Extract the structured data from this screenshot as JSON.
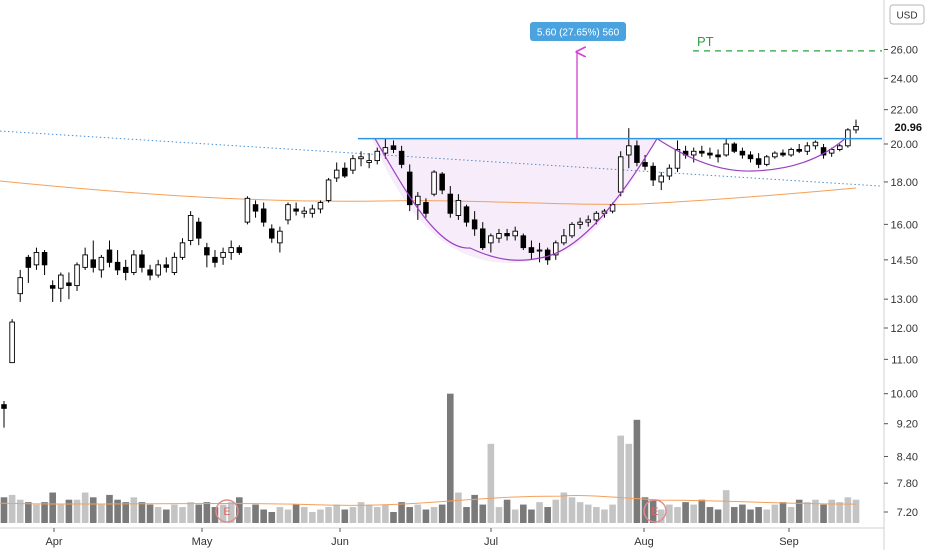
{
  "chart_data": {
    "type": "candlestick",
    "currency_label": "USD",
    "last_price_label": "20.96",
    "y_scale": "log",
    "y_ticks": [
      "7.20",
      "7.80",
      "8.40",
      "9.20",
      "10.00",
      "11.00",
      "12.00",
      "13.00",
      "14.50",
      "16.00",
      "18.00",
      "20.00",
      "22.00",
      "24.00",
      "26.00"
    ],
    "x_ticks": [
      "Apr",
      "May",
      "Jun",
      "Jul",
      "Aug",
      "Sep"
    ],
    "measure_label": "5.60 (27.65%) 560",
    "target_label": "PT",
    "earnings_marker": "E",
    "resistance_level": 20.3,
    "target_level": 25.9,
    "candles": [
      [
        9.7,
        9.8,
        9.1,
        9.6
      ],
      [
        10.9,
        12.3,
        10.9,
        12.2
      ],
      [
        13.2,
        14.1,
        12.9,
        13.8
      ],
      [
        14.6,
        14.7,
        13.6,
        14.2
      ],
      [
        14.3,
        15.0,
        14.1,
        14.8
      ],
      [
        14.8,
        14.9,
        13.9,
        14.3
      ],
      [
        13.5,
        13.7,
        12.9,
        13.4
      ],
      [
        13.4,
        14.0,
        12.9,
        13.9
      ],
      [
        13.6,
        14.0,
        13.0,
        13.5
      ],
      [
        13.5,
        14.4,
        13.3,
        14.3
      ],
      [
        14.2,
        15.0,
        14.1,
        14.7
      ],
      [
        14.5,
        15.3,
        14.0,
        14.2
      ],
      [
        14.1,
        14.7,
        13.8,
        14.6
      ],
      [
        14.9,
        15.3,
        14.2,
        14.4
      ],
      [
        14.4,
        14.9,
        13.9,
        14.1
      ],
      [
        14.2,
        14.5,
        13.7,
        14.0
      ],
      [
        14.0,
        14.9,
        13.9,
        14.7
      ],
      [
        14.7,
        14.9,
        14.0,
        14.2
      ],
      [
        14.1,
        14.3,
        13.7,
        13.9
      ],
      [
        13.9,
        14.5,
        13.8,
        14.3
      ],
      [
        14.3,
        14.6,
        14.0,
        14.2
      ],
      [
        14.0,
        14.8,
        13.9,
        14.6
      ],
      [
        14.6,
        15.4,
        14.5,
        15.2
      ],
      [
        15.3,
        16.6,
        15.1,
        16.4
      ],
      [
        16.1,
        16.3,
        15.1,
        15.4
      ],
      [
        15.0,
        15.2,
        14.2,
        14.7
      ],
      [
        14.6,
        14.9,
        14.2,
        14.4
      ],
      [
        14.6,
        15.0,
        14.3,
        14.8
      ],
      [
        14.8,
        15.3,
        14.5,
        15.0
      ],
      [
        15.0,
        15.1,
        14.7,
        14.8
      ],
      [
        16.1,
        17.3,
        16.0,
        17.2
      ],
      [
        16.9,
        17.1,
        16.3,
        16.6
      ],
      [
        16.7,
        17.0,
        15.9,
        16.1
      ],
      [
        15.8,
        16.0,
        15.2,
        15.4
      ],
      [
        15.2,
        15.9,
        14.8,
        15.7
      ],
      [
        16.2,
        17.0,
        16.0,
        16.9
      ],
      [
        16.7,
        17.0,
        16.4,
        16.6
      ],
      [
        16.5,
        16.8,
        16.3,
        16.6
      ],
      [
        16.5,
        16.9,
        16.3,
        16.7
      ],
      [
        16.7,
        17.1,
        16.5,
        17.0
      ],
      [
        17.1,
        18.2,
        17.0,
        18.1
      ],
      [
        18.2,
        19.0,
        18.0,
        18.6
      ],
      [
        18.7,
        19.0,
        18.2,
        18.3
      ],
      [
        18.6,
        19.4,
        18.4,
        19.2
      ],
      [
        19.2,
        19.6,
        18.8,
        19.3
      ],
      [
        19.0,
        19.5,
        18.7,
        19.1
      ],
      [
        19.1,
        19.8,
        18.9,
        19.6
      ],
      [
        19.5,
        20.3,
        19.2,
        19.8
      ],
      [
        19.9,
        20.2,
        19.5,
        19.7
      ],
      [
        19.6,
        19.9,
        18.7,
        18.9
      ],
      [
        18.5,
        18.9,
        16.6,
        16.9
      ],
      [
        16.9,
        17.5,
        16.2,
        17.3
      ],
      [
        17.0,
        17.2,
        16.3,
        16.5
      ],
      [
        17.4,
        18.6,
        17.3,
        18.5
      ],
      [
        18.4,
        18.5,
        17.4,
        17.6
      ],
      [
        17.4,
        17.8,
        16.3,
        16.5
      ],
      [
        16.4,
        17.4,
        16.2,
        17.1
      ],
      [
        16.8,
        16.9,
        15.9,
        16.1
      ],
      [
        16.2,
        16.6,
        15.5,
        15.8
      ],
      [
        15.8,
        16.1,
        14.9,
        15.0
      ],
      [
        15.2,
        15.6,
        14.8,
        15.5
      ],
      [
        15.4,
        15.8,
        15.2,
        15.6
      ],
      [
        15.6,
        15.8,
        15.3,
        15.5
      ],
      [
        15.5,
        15.9,
        15.3,
        15.7
      ],
      [
        15.5,
        15.6,
        14.9,
        15.0
      ],
      [
        15.0,
        15.3,
        14.5,
        14.8
      ],
      [
        14.9,
        15.2,
        14.4,
        14.9
      ],
      [
        14.9,
        15.0,
        14.3,
        14.5
      ],
      [
        14.7,
        15.3,
        14.5,
        15.2
      ],
      [
        15.2,
        15.8,
        15.1,
        15.5
      ],
      [
        15.5,
        16.1,
        15.4,
        16.0
      ],
      [
        16.0,
        16.3,
        15.8,
        16.1
      ],
      [
        16.1,
        16.4,
        15.9,
        16.2
      ],
      [
        16.2,
        16.6,
        16.0,
        16.5
      ],
      [
        16.5,
        16.7,
        16.3,
        16.6
      ],
      [
        16.6,
        17.0,
        16.5,
        16.9
      ],
      [
        17.5,
        19.6,
        17.3,
        19.3
      ],
      [
        19.4,
        20.9,
        18.7,
        19.9
      ],
      [
        19.9,
        20.2,
        18.8,
        19.0
      ],
      [
        19.0,
        19.4,
        18.6,
        18.8
      ],
      [
        18.8,
        19.0,
        17.8,
        18.1
      ],
      [
        18.0,
        18.5,
        17.6,
        18.3
      ],
      [
        18.3,
        18.9,
        18.1,
        18.7
      ],
      [
        18.7,
        20.2,
        18.5,
        19.7
      ],
      [
        19.6,
        19.9,
        19.2,
        19.4
      ],
      [
        19.4,
        19.8,
        19.0,
        19.6
      ],
      [
        19.6,
        19.9,
        19.3,
        19.5
      ],
      [
        19.5,
        19.8,
        19.2,
        19.4
      ],
      [
        19.4,
        19.7,
        19.0,
        19.3
      ],
      [
        19.4,
        20.3,
        19.3,
        20.0
      ],
      [
        20.0,
        20.1,
        19.5,
        19.6
      ],
      [
        19.6,
        19.8,
        19.2,
        19.4
      ],
      [
        19.4,
        19.6,
        19.0,
        19.2
      ],
      [
        19.2,
        19.5,
        18.7,
        18.9
      ],
      [
        18.9,
        19.4,
        18.8,
        19.3
      ],
      [
        19.3,
        19.6,
        19.2,
        19.5
      ],
      [
        19.5,
        19.7,
        19.3,
        19.4
      ],
      [
        19.4,
        19.8,
        19.3,
        19.7
      ],
      [
        19.7,
        20.0,
        19.5,
        19.6
      ],
      [
        19.6,
        20.1,
        19.4,
        19.9
      ],
      [
        19.9,
        20.2,
        19.7,
        20.1
      ],
      [
        19.8,
        20.0,
        19.2,
        19.4
      ],
      [
        19.5,
        19.8,
        19.3,
        19.7
      ],
      [
        19.7,
        20.0,
        19.6,
        19.9
      ],
      [
        19.9,
        20.9,
        19.8,
        20.8
      ],
      [
        20.8,
        21.4,
        20.6,
        21.0
      ]
    ],
    "volume": [
      7.5,
      7.55,
      7.45,
      7.4,
      7.35,
      7.4,
      7.6,
      7.35,
      7.45,
      7.45,
      7.6,
      7.5,
      7.35,
      7.55,
      7.45,
      7.4,
      7.5,
      7.4,
      7.35,
      7.3,
      7.25,
      7.35,
      7.3,
      7.4,
      7.35,
      7.4,
      7.3,
      7.35,
      7.4,
      7.5,
      7.3,
      7.35,
      7.25,
      7.2,
      7.3,
      7.25,
      7.35,
      7.3,
      7.2,
      7.25,
      7.3,
      7.35,
      7.25,
      7.3,
      7.4,
      7.35,
      7.3,
      7.35,
      7.2,
      7.4,
      7.3,
      7.35,
      7.25,
      7.3,
      7.35,
      10.0,
      7.6,
      7.3,
      7.55,
      7.35,
      8.7,
      7.3,
      7.45,
      7.25,
      7.35,
      7.25,
      7.4,
      7.3,
      7.45,
      7.6,
      7.5,
      7.4,
      7.35,
      7.3,
      7.25,
      7.35,
      8.9,
      8.7,
      9.3,
      7.5,
      7.45,
      7.25,
      7.35,
      7.3,
      7.4,
      7.35,
      7.45,
      7.3,
      7.25,
      7.65,
      7.3,
      7.35,
      7.25,
      7.3,
      7.25,
      7.35,
      7.4,
      7.3,
      7.45,
      7.4,
      7.45,
      7.35,
      7.45,
      7.4,
      7.5,
      7.45
    ],
    "volume_ma_level": 7.36
  }
}
